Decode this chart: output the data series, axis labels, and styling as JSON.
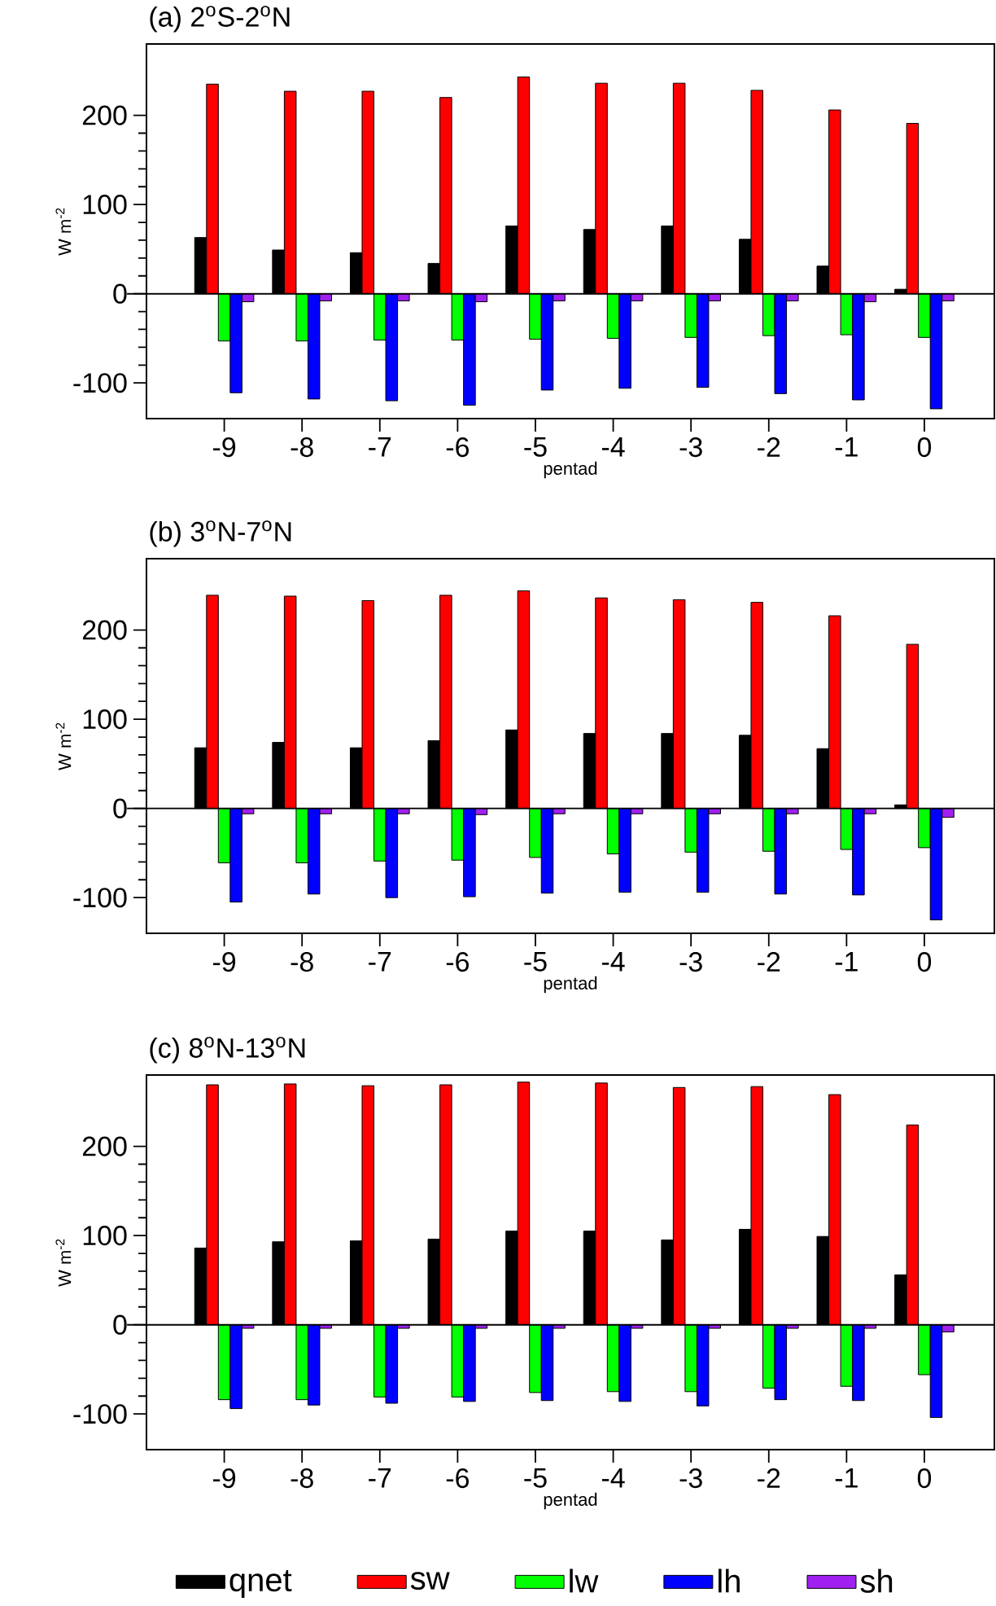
{
  "chart_data": [
    {
      "type": "bar",
      "title": "(a) 2$^{o}$S-2$^{o}$N",
      "xlabel": "pentad",
      "ylabel": "W m$^{-2}$",
      "categories": [
        "-9",
        "-8",
        "-7",
        "-6",
        "-5",
        "-4",
        "-3",
        "-2",
        "-1",
        "0"
      ],
      "ylim": [
        -140,
        280
      ],
      "yticks": [
        -100,
        0,
        100,
        200
      ],
      "ref_lines": [
        {
          "axis": "y",
          "value": 0
        }
      ],
      "series": [
        {
          "color": "#000000",
          "values": [
            63,
            49,
            46,
            34,
            76,
            72,
            76,
            61,
            31,
            5
          ]
        },
        {
          "color": "#ff0000",
          "values": [
            235,
            227,
            227,
            220,
            243,
            236,
            236,
            228,
            206,
            191
          ]
        },
        {
          "color": "#00ff00",
          "values": [
            -53,
            -53,
            -52,
            -52,
            -51,
            -50,
            -49,
            -47,
            -46,
            -49
          ]
        },
        {
          "color": "#0000ff",
          "values": [
            -111,
            -118,
            -120,
            -125,
            -108,
            -106,
            -105,
            -112,
            -119,
            -129
          ]
        },
        {
          "color": "#a020f0",
          "values": [
            -9,
            -8,
            -8,
            -9,
            -8,
            -8,
            -8,
            -8,
            -9,
            -8
          ]
        }
      ]
    },
    {
      "type": "bar",
      "title": "(b) 3$^{o}$N-7$^{o}$N",
      "xlabel": "pentad",
      "ylabel": "W m$^{-2}$",
      "categories": [
        "-9",
        "-8",
        "-7",
        "-6",
        "-5",
        "-4",
        "-3",
        "-2",
        "-1",
        "0"
      ],
      "ylim": [
        -140,
        280
      ],
      "yticks": [
        -100,
        0,
        100,
        200
      ],
      "ref_lines": [
        {
          "axis": "y",
          "value": 0
        }
      ],
      "series": [
        {
          "color": "#000000",
          "values": [
            68,
            74,
            68,
            76,
            88,
            84,
            84,
            82,
            67,
            4
          ]
        },
        {
          "color": "#ff0000",
          "values": [
            239,
            238,
            233,
            239,
            244,
            236,
            234,
            231,
            216,
            184
          ]
        },
        {
          "color": "#00ff00",
          "values": [
            -61,
            -61,
            -59,
            -58,
            -55,
            -51,
            -49,
            -48,
            -46,
            -44
          ]
        },
        {
          "color": "#0000ff",
          "values": [
            -105,
            -96,
            -100,
            -99,
            -95,
            -94,
            -94,
            -96,
            -97,
            -125
          ]
        },
        {
          "color": "#a020f0",
          "values": [
            -6,
            -6,
            -6,
            -7,
            -6,
            -6,
            -6,
            -6,
            -6,
            -10
          ]
        }
      ]
    },
    {
      "type": "bar",
      "title": "(c) 8$^{o}$N-13$^{o}$N",
      "xlabel": "pentad",
      "ylabel": "W m$^{-2}$",
      "categories": [
        "-9",
        "-8",
        "-7",
        "-6",
        "-5",
        "-4",
        "-3",
        "-2",
        "-1",
        "0"
      ],
      "ylim": [
        -140,
        280
      ],
      "yticks": [
        -100,
        0,
        100,
        200
      ],
      "ref_lines": [
        {
          "axis": "y",
          "value": 0
        }
      ],
      "legend": "bottom",
      "series": [
        {
          "name": "qnet",
          "color": "#000000",
          "values": [
            86,
            93,
            94,
            96,
            105,
            105,
            95,
            107,
            99,
            56
          ]
        },
        {
          "name": "sw",
          "color": "#ff0000",
          "values": [
            269,
            270,
            268,
            269,
            272,
            271,
            266,
            267,
            258,
            224
          ]
        },
        {
          "name": "lw",
          "color": "#00ff00",
          "values": [
            -84,
            -84,
            -81,
            -81,
            -76,
            -75,
            -75,
            -71,
            -69,
            -56
          ]
        },
        {
          "name": "lh",
          "color": "#0000ff",
          "values": [
            -94,
            -90,
            -88,
            -86,
            -85,
            -86,
            -91,
            -84,
            -85,
            -104
          ]
        },
        {
          "name": "sh",
          "color": "#a020f0",
          "values": [
            -4,
            -4,
            -4,
            -4,
            -4,
            -4,
            -4,
            -4,
            -4,
            -8
          ]
        }
      ]
    }
  ]
}
